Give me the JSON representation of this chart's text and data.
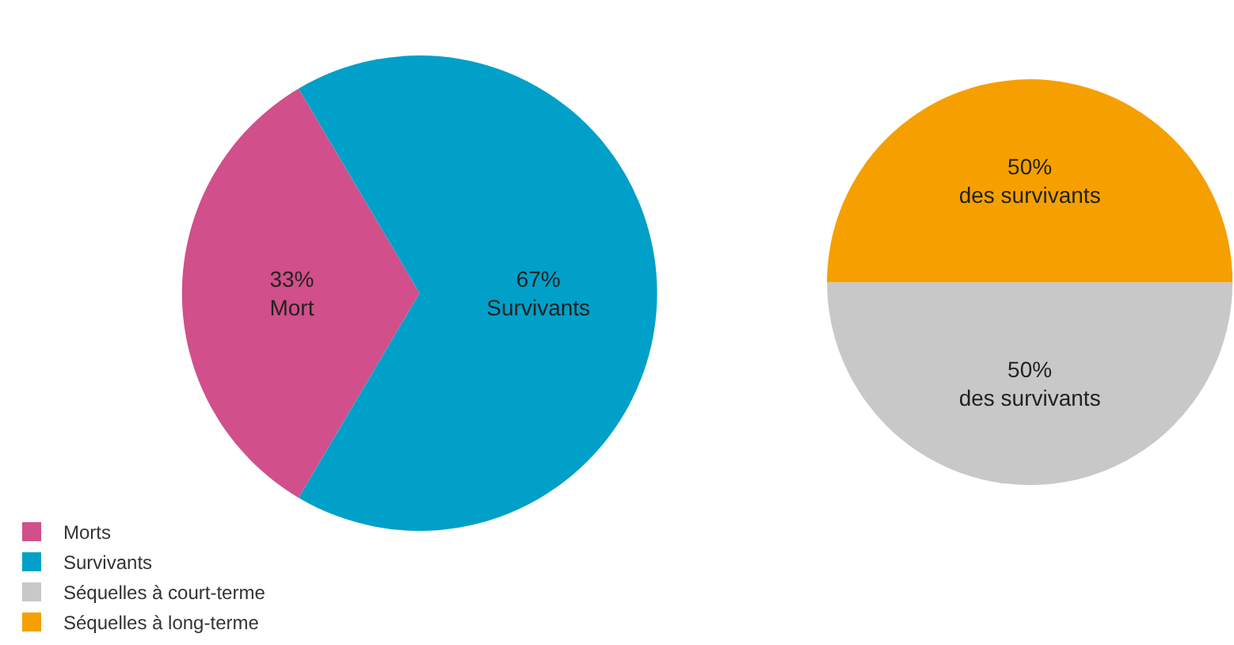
{
  "chart_data": [
    {
      "type": "pie",
      "categories": [
        "Morts",
        "Survivants"
      ],
      "values": [
        33,
        67
      ],
      "colors": [
        "#d14f8a",
        "#00a0c8"
      ],
      "value_labels": [
        "33%\nMort",
        "67%\nSurvivants"
      ],
      "legend": "bottom left"
    },
    {
      "type": "pie",
      "categories": [
        "Séquelles à court-terme",
        "Séquelles à long-terme"
      ],
      "values": [
        50,
        50
      ],
      "colors": [
        "#c8c8c8",
        "#f5a000"
      ],
      "value_labels": [
        "50%\ndes survivants",
        "50%\ndes survivants"
      ],
      "legend": "bottom left"
    }
  ]
}
